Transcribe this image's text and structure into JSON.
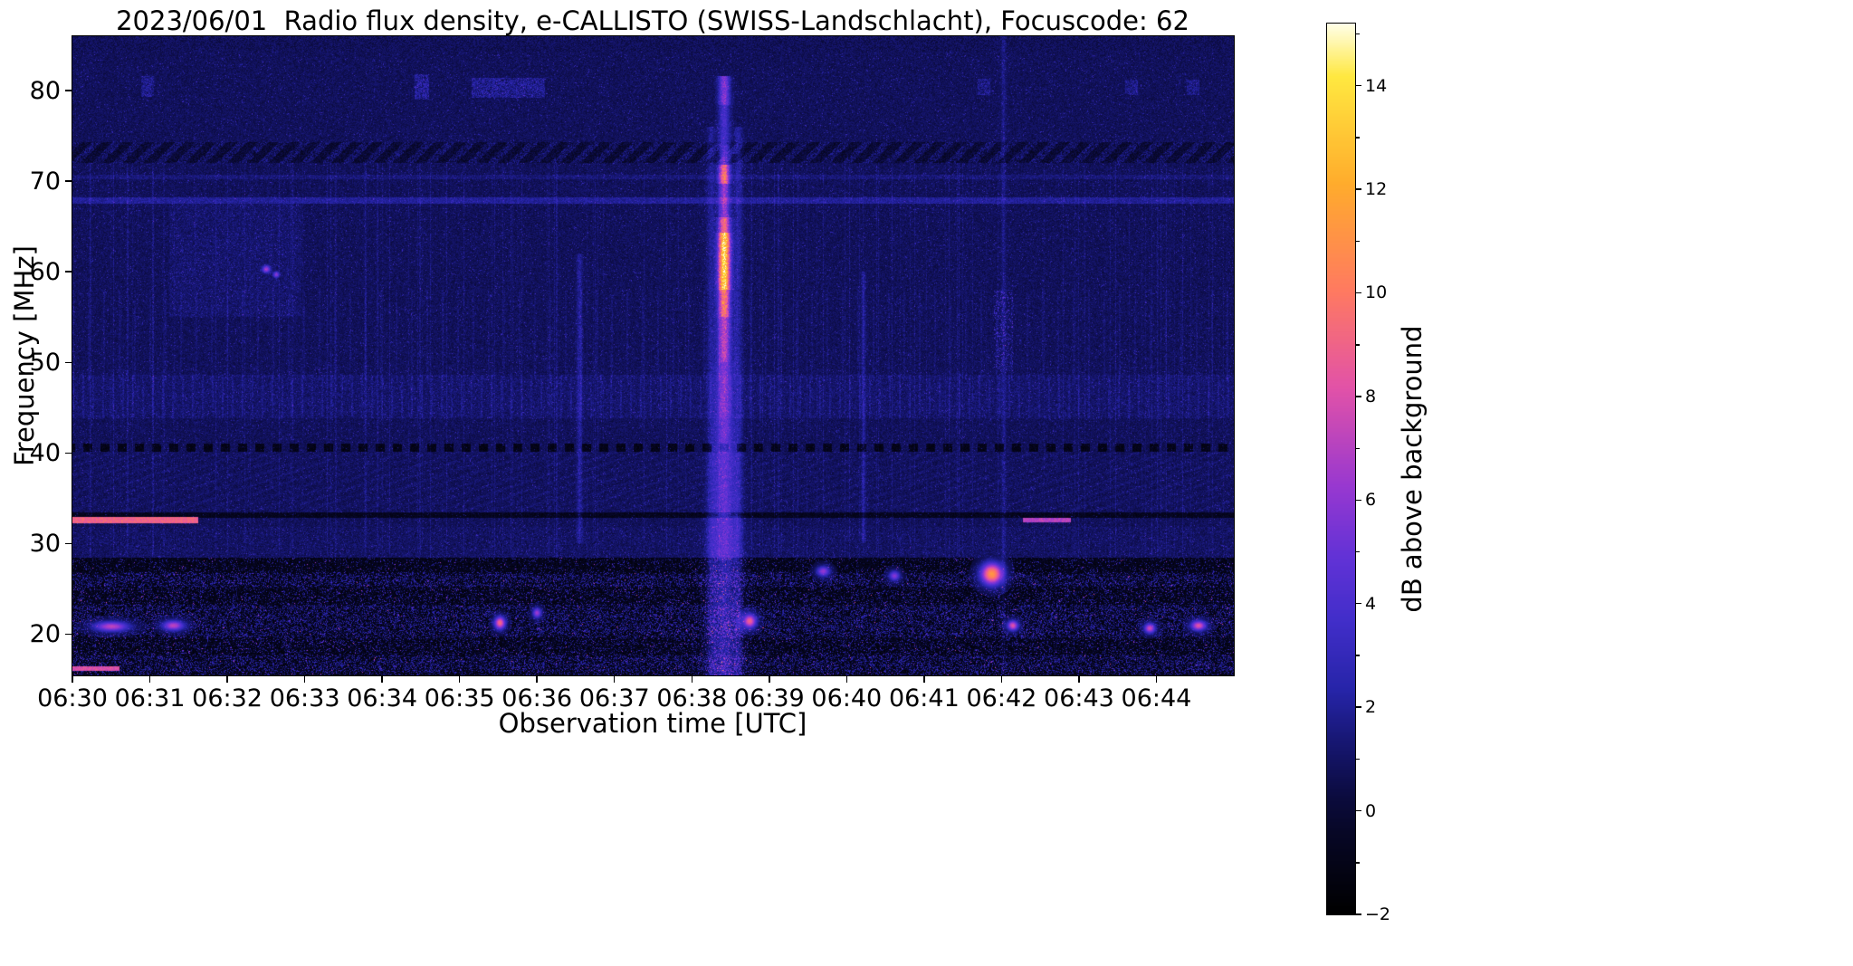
{
  "title": "2023/06/01  Radio flux density, e-CALLISTO (SWISS-Landschlacht), Focuscode: 62",
  "chart_data": {
    "type": "heatmap",
    "title": "2023/06/01  Radio flux density, e-CALLISTO (SWISS-Landschlacht), Focuscode: 62",
    "xlabel": "Observation time [UTC]",
    "ylabel": "Frequency [MHz]",
    "x_ticks": [
      "06:30",
      "06:31",
      "06:32",
      "06:33",
      "06:34",
      "06:35",
      "06:36",
      "06:37",
      "06:38",
      "06:39",
      "06:40",
      "06:41",
      "06:42",
      "06:43",
      "06:44"
    ],
    "x_range_minutes": [
      0,
      15
    ],
    "y_ticks": [
      80,
      70,
      60,
      50,
      40,
      30,
      20
    ],
    "y_range_mhz": [
      15.45,
      86.0
    ],
    "grid": false,
    "colorbar": {
      "label": "dB above background",
      "ticks": [
        -2,
        0,
        2,
        4,
        6,
        8,
        10,
        12,
        14
      ],
      "minor_ticks": [
        -1,
        1,
        3,
        5,
        7,
        9,
        11,
        13,
        15
      ],
      "vmin": -2,
      "vmax": 15.2,
      "colormap": [
        [
          0.0,
          0,
          0,
          0
        ],
        [
          0.09,
          7,
          7,
          38
        ],
        [
          0.13,
          11,
          11,
          62
        ],
        [
          0.19,
          22,
          22,
          112
        ],
        [
          0.25,
          38,
          36,
          168
        ],
        [
          0.33,
          66,
          46,
          202
        ],
        [
          0.4,
          98,
          50,
          214
        ],
        [
          0.48,
          152,
          56,
          208
        ],
        [
          0.59,
          226,
          82,
          168
        ],
        [
          0.7,
          255,
          122,
          96
        ],
        [
          0.82,
          255,
          172,
          44
        ],
        [
          0.94,
          255,
          232,
          64
        ],
        [
          1.0,
          255,
          255,
          235
        ]
      ]
    },
    "features": {
      "burst": {
        "time_minutes": 8.42,
        "label": "solar radio burst at ~06:38:25",
        "components": [
          {
            "f0": 78.4,
            "f1": 81.6,
            "amp": 5.0,
            "sig": 0.05
          },
          {
            "f0": 74.0,
            "f1": 78.4,
            "amp": 3.0,
            "sig": 0.05
          },
          {
            "f0": 71.8,
            "f1": 74.0,
            "amp": 4.5,
            "sig": 0.05
          },
          {
            "f0": 69.7,
            "f1": 71.8,
            "amp": 9.0,
            "sig": 0.05
          },
          {
            "f0": 66.0,
            "f1": 69.7,
            "amp": 5.5,
            "sig": 0.05
          },
          {
            "f0": 64.3,
            "f1": 66.0,
            "amp": 8.5,
            "sig": 0.055
          },
          {
            "f0": 58.0,
            "f1": 64.3,
            "amp": 13.5,
            "sig": 0.055
          },
          {
            "f0": 55.0,
            "f1": 58.0,
            "amp": 9.5,
            "sig": 0.055
          },
          {
            "f0": 50.0,
            "f1": 55.0,
            "amp": 6.5,
            "sig": 0.06
          },
          {
            "f0": 44.0,
            "f1": 50.0,
            "amp": 5.0,
            "sig": 0.07
          },
          {
            "f0": 40.0,
            "f1": 44.0,
            "amp": 4.5,
            "sig": 0.08
          },
          {
            "f0": 33.0,
            "f1": 40.0,
            "amp": 4.0,
            "sig": 0.1
          },
          {
            "f0": 28.0,
            "f1": 33.0,
            "amp": 4.0,
            "sig": 0.12
          },
          {
            "f0": 15.45,
            "f1": 28.0,
            "amp": 3.5,
            "sig": 0.14
          }
        ],
        "side_columns": [
          {
            "dt": -0.17,
            "amp": 1.6
          },
          {
            "dt": 0.18,
            "amp": 2.0
          }
        ]
      },
      "hlines": [
        {
          "f": 32.55,
          "df": 0.33,
          "t0": 0.0,
          "t1": 1.62,
          "amp": 9.0
        },
        {
          "f": 32.55,
          "df": 0.28,
          "t0": 12.28,
          "t1": 12.9,
          "amp": 7.0
        },
        {
          "f": 16.2,
          "df": 0.25,
          "t0": 0.0,
          "t1": 0.6,
          "amp": 8.0
        }
      ],
      "blobs": [
        {
          "t": 11.88,
          "f": 26.6,
          "rt": 0.1,
          "rf": 0.85,
          "amp": 11.0
        },
        {
          "t": 5.52,
          "f": 21.2,
          "rt": 0.05,
          "rf": 0.5,
          "amp": 9.0
        },
        {
          "t": 8.75,
          "f": 21.4,
          "rt": 0.06,
          "rf": 0.55,
          "amp": 8.5
        },
        {
          "t": 0.5,
          "f": 20.8,
          "rt": 0.16,
          "rf": 0.4,
          "amp": 7.0
        },
        {
          "t": 1.3,
          "f": 20.9,
          "rt": 0.1,
          "rf": 0.4,
          "amp": 7.0
        },
        {
          "t": 12.15,
          "f": 20.9,
          "rt": 0.05,
          "rf": 0.4,
          "amp": 8.0
        },
        {
          "t": 13.92,
          "f": 20.6,
          "rt": 0.05,
          "rf": 0.4,
          "amp": 7.5
        },
        {
          "t": 14.55,
          "f": 20.9,
          "rt": 0.07,
          "rf": 0.4,
          "amp": 8.0
        },
        {
          "t": 9.7,
          "f": 26.9,
          "rt": 0.06,
          "rf": 0.4,
          "amp": 6.0
        },
        {
          "t": 10.62,
          "f": 26.4,
          "rt": 0.05,
          "rf": 0.4,
          "amp": 5.6
        },
        {
          "t": 2.5,
          "f": 60.3,
          "rt": 0.04,
          "rf": 0.3,
          "amp": 6.0
        },
        {
          "t": 2.63,
          "f": 59.7,
          "rt": 0.03,
          "rf": 0.25,
          "amp": 5.4
        },
        {
          "t": 6.0,
          "f": 22.3,
          "rt": 0.04,
          "rf": 0.4,
          "amp": 6.2
        }
      ],
      "vlines": [
        {
          "t": 6.55,
          "f0": 30,
          "f1": 62,
          "amp": 1.3,
          "w": 0.025
        },
        {
          "t": 10.22,
          "f0": 30,
          "f1": 60,
          "amp": 1.2,
          "w": 0.02
        },
        {
          "t": 12.03,
          "f0": 15.45,
          "f1": 86,
          "amp": 0.9,
          "w": 0.02,
          "speckle": {
            "f0": 49,
            "f1": 58,
            "amp": 3.2
          }
        }
      ],
      "patches": [
        {
          "t0": 0.88,
          "t1": 1.05,
          "f0": 79.3,
          "f1": 81.6,
          "amp": 1.8
        },
        {
          "t0": 4.42,
          "t1": 4.6,
          "f0": 79.0,
          "f1": 81.8,
          "amp": 2.2
        },
        {
          "t0": 5.15,
          "t1": 6.1,
          "f0": 79.2,
          "f1": 81.4,
          "amp": 2.0
        },
        {
          "t0": 11.7,
          "t1": 11.86,
          "f0": 79.5,
          "f1": 81.3,
          "amp": 1.5
        },
        {
          "t0": 13.6,
          "t1": 13.76,
          "f0": 79.5,
          "f1": 81.2,
          "amp": 1.6
        },
        {
          "t0": 14.4,
          "t1": 14.56,
          "f0": 79.5,
          "f1": 81.2,
          "amp": 1.5
        },
        {
          "t0": 1.25,
          "t1": 2.95,
          "f0": 55.0,
          "f1": 67.5,
          "amp": 0.6
        }
      ]
    }
  }
}
